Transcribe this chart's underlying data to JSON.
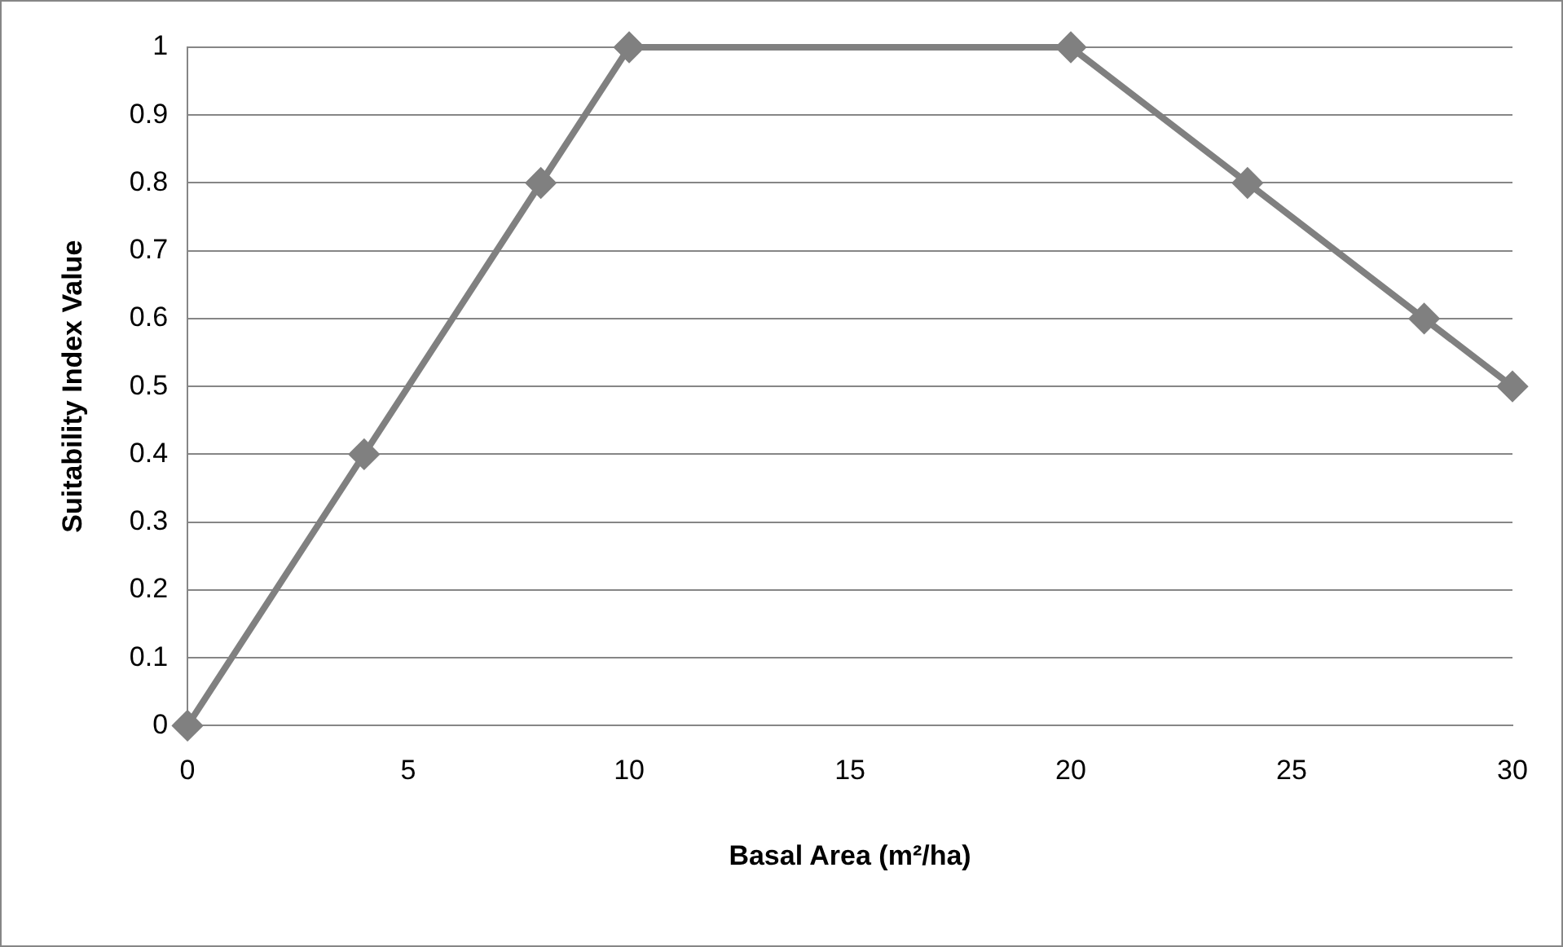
{
  "chart_data": {
    "type": "line",
    "xlabel": "Basal Area (m²/ha)",
    "ylabel": "Suitability Index Value",
    "x": [
      0,
      4,
      8,
      10,
      20,
      24,
      28,
      30
    ],
    "series": [
      {
        "color": "#808080",
        "values": [
          0,
          0.4,
          0.8,
          1,
          1,
          0.8,
          0.6,
          0.5
        ]
      }
    ],
    "xlim": [
      0,
      30
    ],
    "xticks": [
      0,
      5,
      10,
      15,
      20,
      25,
      30
    ],
    "ylim": [
      0,
      1
    ],
    "yticks": [
      0,
      0.1,
      0.2,
      0.3,
      0.4,
      0.5,
      0.6,
      0.7,
      0.8,
      0.9,
      1
    ],
    "grid": "y",
    "legend": false,
    "marker": "diamond",
    "line_style": "solid"
  }
}
